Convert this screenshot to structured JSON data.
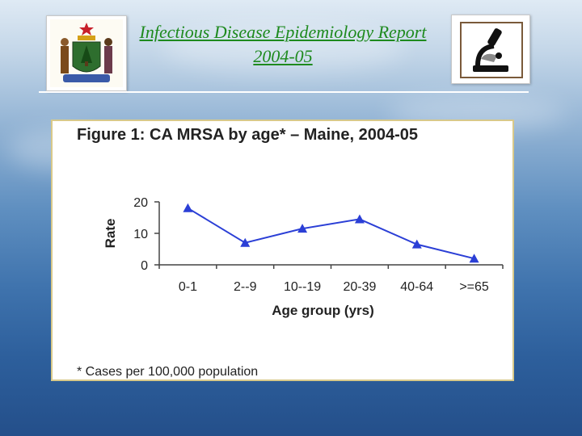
{
  "header": {
    "title_line1": "Infectious Disease Epidemiology Report",
    "title_line2": "2004-05",
    "left_logo": "maine-state-seal-icon",
    "right_logo": "microscope-icon"
  },
  "colors": {
    "title_green": "#1e8a1e",
    "series_blue": "#2b3fd6",
    "panel_border": "#d8c98a"
  },
  "figure": {
    "title": "Figure 1: CA MRSA by age* – Maine, 2004-05",
    "footnote": "* Cases per 100,000 population"
  },
  "chart_data": {
    "type": "line",
    "title": "Figure 1: CA MRSA by age* – Maine, 2004-05",
    "xlabel": "Age group (yrs)",
    "ylabel": "Rate",
    "categories": [
      "0-1",
      "2--9",
      "10--19",
      "20-39",
      "40-64",
      ">=65"
    ],
    "values": [
      18,
      7,
      11.5,
      14.5,
      6.5,
      2
    ],
    "ylim": [
      0,
      20
    ],
    "yticks": [
      0,
      10,
      20
    ],
    "grid": false,
    "marker": "triangle"
  }
}
